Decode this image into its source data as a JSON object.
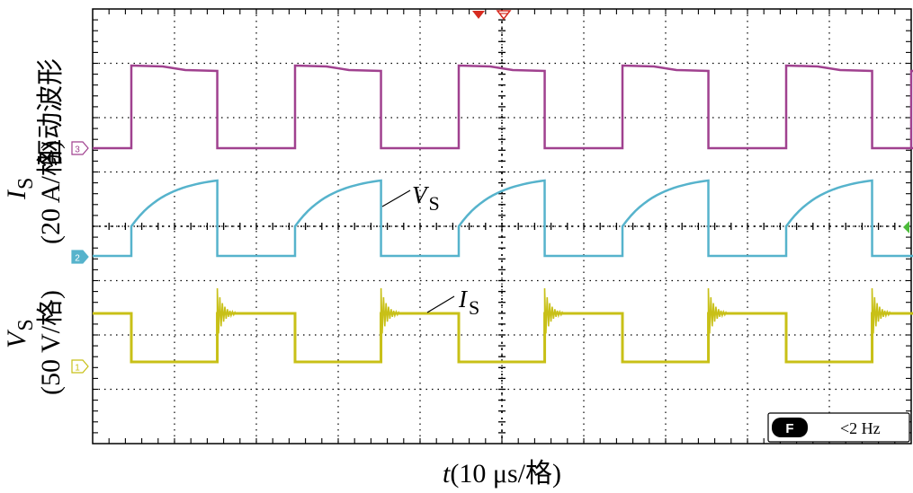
{
  "ylabel_top": "驱动波形",
  "ylabel_is_sym": "I",
  "ylabel_is_sub": "S",
  "ylabel_is_scale": "(20 A/格)",
  "ylabel_vs_sym": "V",
  "ylabel_vs_sub": "S",
  "ylabel_vs_scale": "(50 V/格)",
  "xlabel_sym": "t",
  "xlabel_scale": "(10 μs/格)",
  "annotation_vs_sym": "V",
  "annotation_vs_sub": "S",
  "annotation_is_sym": "I",
  "annotation_is_sub": "S",
  "status_badge": "F",
  "status_text": "<2 Hz",
  "channel_markers": [
    "3",
    "2",
    "1"
  ],
  "colors": {
    "ch3": "#a0418f",
    "ch2": "#56b3cc",
    "ch1": "#c8c017",
    "trigger": "#d62b20",
    "level": "#4cbb3a"
  },
  "chart_data": {
    "type": "line",
    "xlabel": "t(10 μs/格)",
    "ylabel": "",
    "grid": true,
    "divisions": {
      "x": 10,
      "y": 8
    },
    "xlim": [
      0,
      100
    ],
    "x_unit": "μs",
    "period": 20,
    "series": [
      {
        "name": "驱动波形",
        "channel": "3",
        "description": "gate drive square wave",
        "high_time": [
          0,
          10.5
        ],
        "low_time": [
          10.5,
          20
        ]
      },
      {
        "name": "I_S",
        "channel": "2",
        "scale": "20 A/格",
        "rise": [
          0,
          10.5
        ],
        "zero_time": [
          10.5,
          20
        ]
      },
      {
        "name": "V_S",
        "channel": "1",
        "scale": "50 V/格",
        "low_time": [
          0,
          10.5
        ],
        "high_time": [
          10.5,
          20
        ]
      }
    ]
  }
}
